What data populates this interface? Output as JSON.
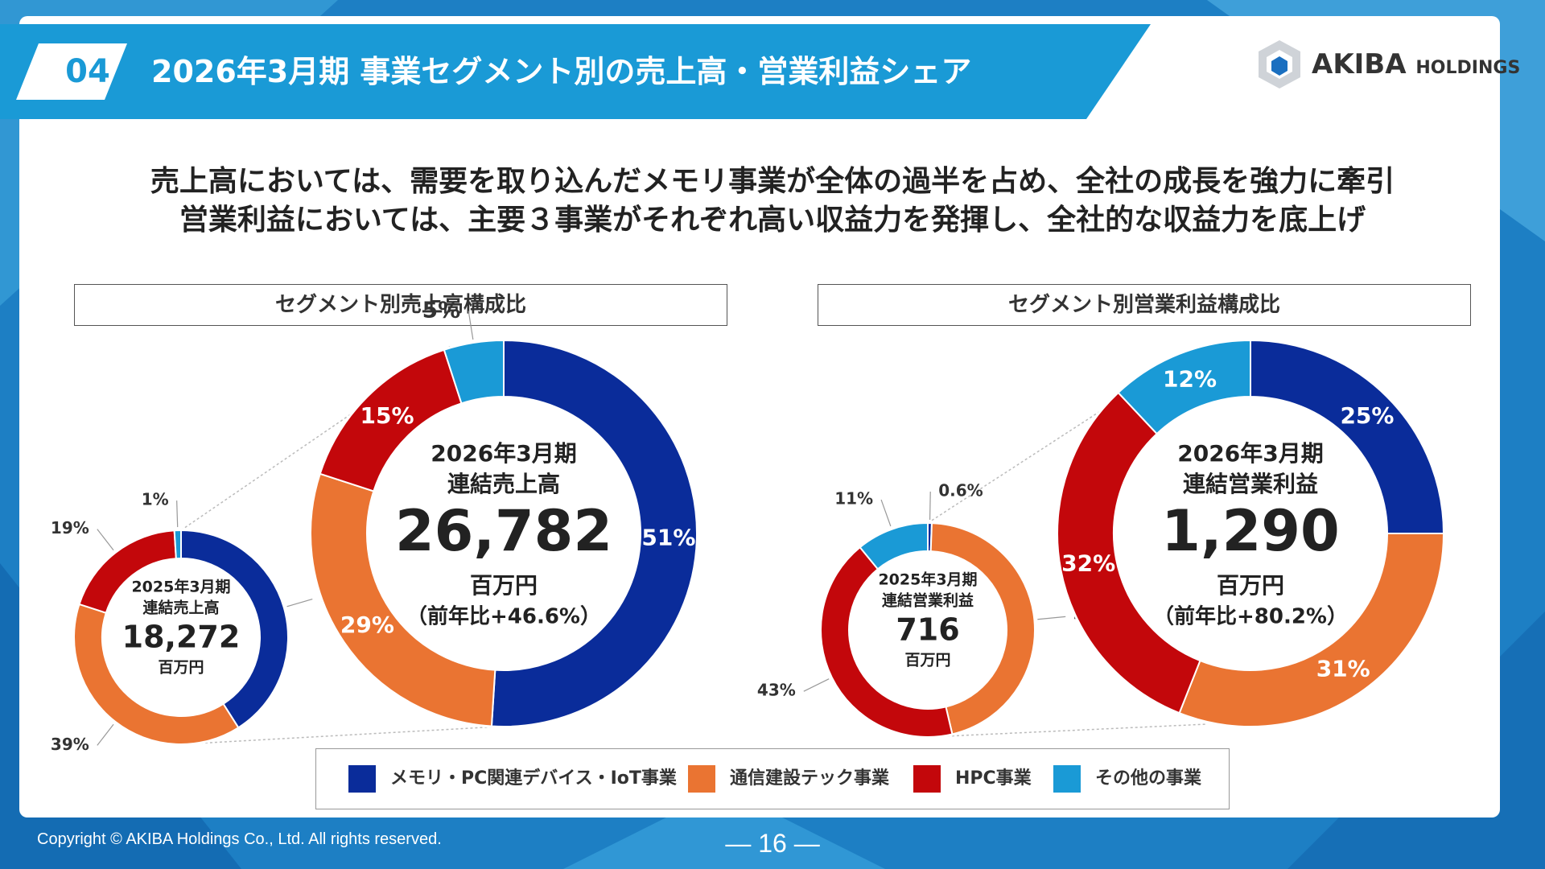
{
  "slide": {
    "number": "04",
    "title": "2026年3月期 事業セグメント別の売上高・営業利益シェア",
    "logo_text": "AKIBA",
    "logo_sub": "HOLDINGS",
    "lead_line1": "売上高においては、需要を取り込んだメモリ事業が全体の過半を占め、全社の成長を強力に牽引",
    "lead_line2": "営業利益においては、主要３事業がそれぞれ高い収益力を発揮し、全社的な収益力を底上げ",
    "copyright": "Copyright © AKIBA Holdings Co., Ltd. All rights reserved.",
    "page": "— 16 —"
  },
  "panels": {
    "left_title": "セグメント別売上高構成比",
    "right_title": "セグメント別営業利益構成比"
  },
  "legend": [
    {
      "label": "メモリ・PC関連デバイス・IoT事業",
      "color": "#0a2c9a"
    },
    {
      "label": "通信建設テック事業",
      "color": "#ea7432"
    },
    {
      "label": "HPC事業",
      "color": "#c3070b"
    },
    {
      "label": "その他の事業",
      "color": "#1a9ad6"
    }
  ],
  "colors": {
    "header": "#1a9ad6",
    "memory": "#0a2c9a",
    "telecom": "#ea7432",
    "hpc": "#c3070b",
    "other": "#1a9ad6"
  },
  "chart_data": [
    {
      "type": "pie",
      "title": "2025年3月期 連結売上高",
      "center_line1": "2025年3月期",
      "center_line2": "連結売上高",
      "center_value": "18,272",
      "center_unit": "百万円",
      "center_note": "",
      "categories": [
        "メモリ・PC関連デバイス・IoT事業",
        "通信建設テック事業",
        "HPC事業",
        "その他の事業"
      ],
      "values": [
        41,
        39,
        19,
        1
      ],
      "labels": [
        "41%",
        "39%",
        "19%",
        "1%"
      ]
    },
    {
      "type": "pie",
      "title": "2026年3月期 連結売上高",
      "center_line1": "2026年3月期",
      "center_line2": "連結売上高",
      "center_value": "26,782",
      "center_unit": "百万円",
      "center_note": "（前年比+46.6%）",
      "categories": [
        "メモリ・PC関連デバイス・IoT事業",
        "通信建設テック事業",
        "HPC事業",
        "その他の事業"
      ],
      "values": [
        51,
        29,
        15,
        5
      ],
      "labels": [
        "51%",
        "29%",
        "15%",
        "5%"
      ]
    },
    {
      "type": "pie",
      "title": "2025年3月期 連結営業利益",
      "center_line1": "2025年3月期",
      "center_line2": "連結営業利益",
      "center_value": "716",
      "center_unit": "百万円",
      "center_note": "",
      "categories": [
        "メモリ・PC関連デバイス・IoT事業",
        "通信建設テック事業",
        "HPC事業",
        "その他の事業"
      ],
      "values": [
        0.6,
        46,
        43,
        11
      ],
      "labels": [
        "0.6%",
        "46%",
        "43%",
        "11%"
      ]
    },
    {
      "type": "pie",
      "title": "2026年3月期 連結営業利益",
      "center_line1": "2026年3月期",
      "center_line2": "連結営業利益",
      "center_value": "1,290",
      "center_unit": "百万円",
      "center_note": "（前年比+80.2%）",
      "categories": [
        "メモリ・PC関連デバイス・IoT事業",
        "通信建設テック事業",
        "HPC事業",
        "その他の事業"
      ],
      "values": [
        25,
        31,
        32,
        12
      ],
      "labels": [
        "25%",
        "31%",
        "32%",
        "12%"
      ]
    }
  ]
}
